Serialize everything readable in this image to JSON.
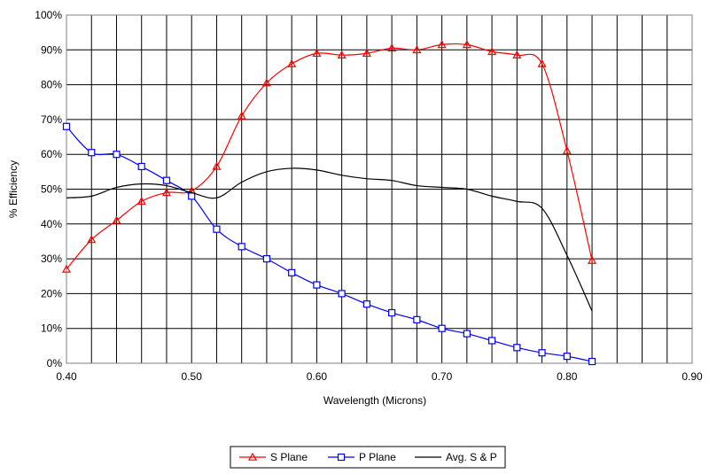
{
  "chart_data": {
    "type": "line",
    "xlabel": "Wavelength (Microns)",
    "ylabel": "% Efficiency",
    "xlim": [
      0.4,
      0.9
    ],
    "ylim": [
      0,
      100
    ],
    "x_ticks": [
      "0.40",
      "0.50",
      "0.60",
      "0.70",
      "0.80",
      "0.90"
    ],
    "y_ticks": [
      "0%",
      "10%",
      "20%",
      "30%",
      "40%",
      "50%",
      "60%",
      "70%",
      "80%",
      "90%",
      "100%"
    ],
    "vertical_grid_step": 0.02,
    "grid": true,
    "legend_position": "bottom",
    "series": [
      {
        "name": "S Plane",
        "color": "#ff0000",
        "marker": "triangle",
        "points": [
          [
            0.4,
            27
          ],
          [
            0.42,
            35.5
          ],
          [
            0.44,
            41
          ],
          [
            0.46,
            46.5
          ],
          [
            0.48,
            49
          ],
          [
            0.5,
            49.5
          ],
          [
            0.52,
            56.5
          ],
          [
            0.54,
            71
          ],
          [
            0.56,
            80.5
          ],
          [
            0.58,
            86
          ],
          [
            0.6,
            89
          ],
          [
            0.62,
            88.5
          ],
          [
            0.64,
            89
          ],
          [
            0.66,
            90.5
          ],
          [
            0.68,
            90
          ],
          [
            0.7,
            91.5
          ],
          [
            0.72,
            91.5
          ],
          [
            0.74,
            89.5
          ],
          [
            0.76,
            88.5
          ],
          [
            0.78,
            86
          ],
          [
            0.8,
            61
          ],
          [
            0.82,
            29.5
          ]
        ]
      },
      {
        "name": "P Plane",
        "color": "#0000ff",
        "marker": "square",
        "points": [
          [
            0.4,
            68
          ],
          [
            0.42,
            60.5
          ],
          [
            0.44,
            60
          ],
          [
            0.46,
            56.5
          ],
          [
            0.48,
            52.5
          ],
          [
            0.5,
            48
          ],
          [
            0.52,
            38.5
          ],
          [
            0.54,
            33.5
          ],
          [
            0.56,
            30
          ],
          [
            0.58,
            26
          ],
          [
            0.6,
            22.5
          ],
          [
            0.62,
            20
          ],
          [
            0.64,
            17
          ],
          [
            0.66,
            14.5
          ],
          [
            0.68,
            12.5
          ],
          [
            0.7,
            10
          ],
          [
            0.72,
            8.5
          ],
          [
            0.74,
            6.5
          ],
          [
            0.76,
            4.5
          ],
          [
            0.78,
            3
          ],
          [
            0.8,
            2
          ],
          [
            0.82,
            0.5
          ]
        ]
      },
      {
        "name": "Avg. S & P",
        "color": "#000000",
        "marker": "none",
        "points": [
          [
            0.4,
            47.5
          ],
          [
            0.42,
            48
          ],
          [
            0.44,
            50.5
          ],
          [
            0.46,
            51.5
          ],
          [
            0.48,
            51
          ],
          [
            0.5,
            49
          ],
          [
            0.52,
            47.5
          ],
          [
            0.54,
            52
          ],
          [
            0.56,
            55
          ],
          [
            0.58,
            56
          ],
          [
            0.6,
            55.5
          ],
          [
            0.62,
            54
          ],
          [
            0.64,
            53
          ],
          [
            0.66,
            52.5
          ],
          [
            0.68,
            51
          ],
          [
            0.7,
            50.5
          ],
          [
            0.72,
            50
          ],
          [
            0.74,
            48
          ],
          [
            0.76,
            46.5
          ],
          [
            0.78,
            44.5
          ],
          [
            0.8,
            31
          ],
          [
            0.82,
            15
          ]
        ]
      }
    ]
  }
}
